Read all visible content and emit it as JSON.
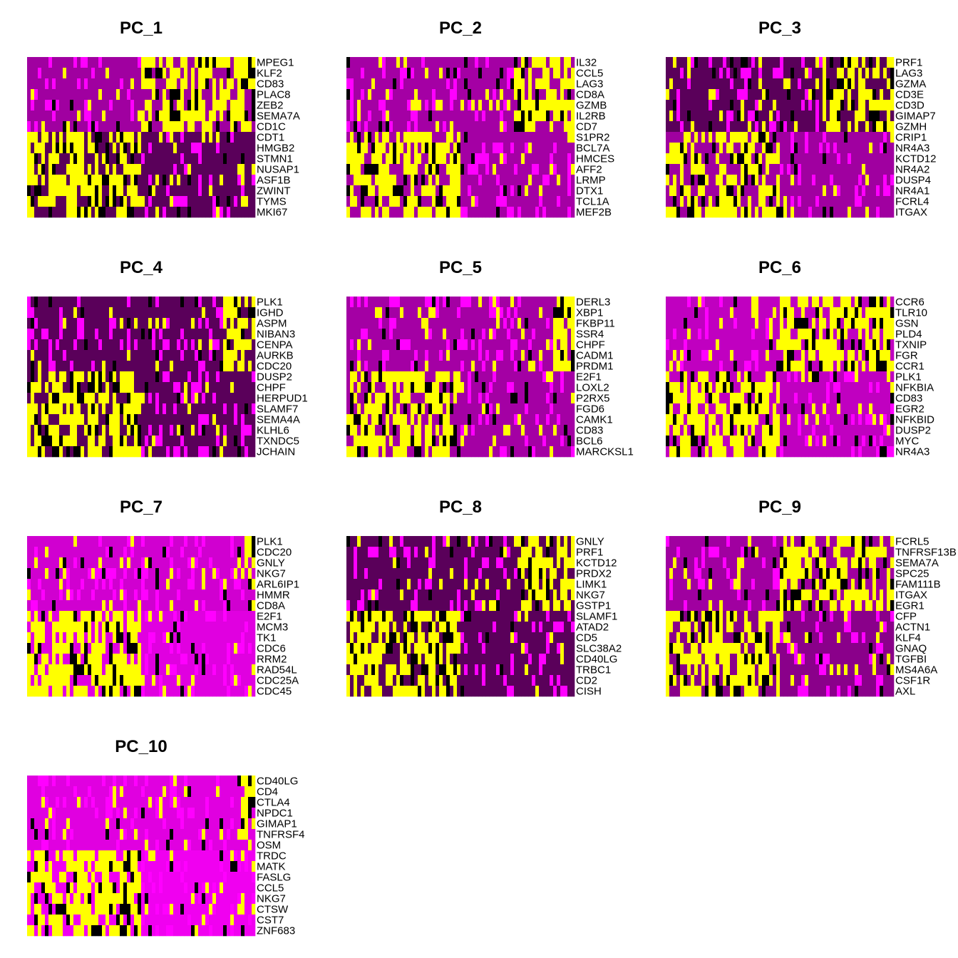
{
  "colors": {
    "low": "#ff00ff",
    "mid": "#000000",
    "high": "#ffff00",
    "base_hi": "#a400a4",
    "base_lo": "#5a005a"
  },
  "chart_data": [
    {
      "type": "heatmap",
      "title": "PC_1",
      "genes": [
        "MPEG1",
        "KLF2",
        "CD83",
        "PLAC8",
        "ZEB2",
        "SEMA7A",
        "CD1C",
        "CDT1",
        "HMGB2",
        "STMN1",
        "NUSAP1",
        "ASF1B",
        "ZWINT",
        "TYMS",
        "MKI67"
      ],
      "high_group": "bottom",
      "split_fraction": 0.5
    },
    {
      "type": "heatmap",
      "title": "PC_2",
      "genes": [
        "IL32",
        "CCL5",
        "LAG3",
        "CD8A",
        "GZMB",
        "IL2RB",
        "CD7",
        "S1PR2",
        "BCL7A",
        "HMCES",
        "AFF2",
        "LRMP",
        "DTX1",
        "TCL1A",
        "MEF2B"
      ],
      "high_group": "mixed",
      "split_fraction": 0.5
    },
    {
      "type": "heatmap",
      "title": "PC_3",
      "genes": [
        "PRF1",
        "LAG3",
        "GZMA",
        "CD3E",
        "CD3D",
        "GIMAP7",
        "GZMH",
        "CRIP1",
        "NR4A3",
        "KCTD12",
        "NR4A2",
        "DUSP4",
        "NR4A1",
        "FCRL4",
        "ITGAX"
      ],
      "high_group": "mixed",
      "split_fraction": 0.5
    },
    {
      "type": "heatmap",
      "title": "PC_4",
      "genes": [
        "PLK1",
        "IGHD",
        "ASPM",
        "NIBAN3",
        "CENPA",
        "AURKB",
        "CDC20",
        "DUSP2",
        "CHPF",
        "HERPUD1",
        "SLAMF7",
        "SEMA4A",
        "KLHL6",
        "TXNDC5",
        "JCHAIN"
      ],
      "high_group": "mixed",
      "split_fraction": 0.5
    },
    {
      "type": "heatmap",
      "title": "PC_5",
      "genes": [
        "DERL3",
        "XBP1",
        "FKBP11",
        "SSR4",
        "CHPF",
        "CADM1",
        "PRDM1",
        "E2F1",
        "LOXL2",
        "P2RX5",
        "FGD6",
        "CAMK1",
        "CD83",
        "BCL6",
        "MARCKSL1"
      ],
      "high_group": "mixed",
      "split_fraction": 0.5
    },
    {
      "type": "heatmap",
      "title": "PC_6",
      "genes": [
        "CCR6",
        "TLR10",
        "GSN",
        "PLD4",
        "TXNIP",
        "FGR",
        "CCR1",
        "PLK1",
        "NFKBIA",
        "CD83",
        "EGR2",
        "NFKBID",
        "DUSP2",
        "MYC",
        "NR4A3"
      ],
      "high_group": "mixed",
      "split_fraction": 0.5
    },
    {
      "type": "heatmap",
      "title": "PC_7",
      "genes": [
        "PLK1",
        "CDC20",
        "GNLY",
        "NKG7",
        "ARL6IP1",
        "HMMR",
        "CD8A",
        "E2F1",
        "MCM3",
        "TK1",
        "CDC6",
        "RRM2",
        "RAD54L",
        "CDC25A",
        "CDC45"
      ],
      "high_group": "mixed",
      "split_fraction": 0.5
    },
    {
      "type": "heatmap",
      "title": "PC_8",
      "genes": [
        "GNLY",
        "PRF1",
        "KCTD12",
        "PRDX2",
        "LIMK1",
        "NKG7",
        "GSTP1",
        "SLAMF1",
        "ATAD2",
        "CD5",
        "SLC38A2",
        "CD40LG",
        "TRBC1",
        "CD2",
        "CISH"
      ],
      "high_group": "mixed",
      "split_fraction": 0.5
    },
    {
      "type": "heatmap",
      "title": "PC_9",
      "genes": [
        "FCRL5",
        "TNFRSF13B",
        "SEMA7A",
        "SPC25",
        "FAM111B",
        "ITGAX",
        "EGR1",
        "CFP",
        "ACTN1",
        "KLF4",
        "GNAQ",
        "TGFBI",
        "MS4A6A",
        "CSF1R",
        "AXL"
      ],
      "high_group": "mixed",
      "split_fraction": 0.5
    },
    {
      "type": "heatmap",
      "title": "PC_10",
      "genes": [
        "CD40LG",
        "CD4",
        "CTLA4",
        "NPDC1",
        "GIMAP1",
        "TNFRSF4",
        "OSM",
        "TRDC",
        "MATK",
        "FASLG",
        "CCL5",
        "NKG7",
        "CTSW",
        "CST7",
        "ZNF683"
      ],
      "high_group": "mixed",
      "split_fraction": 0.5
    }
  ]
}
